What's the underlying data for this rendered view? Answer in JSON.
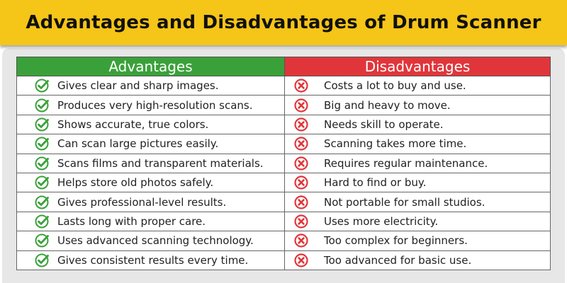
{
  "title": "Advantages and Disadvantages of Drum Scanner",
  "headers": {
    "advantages": "Advantages",
    "disadvantages": "Disadvantages"
  },
  "colors": {
    "title_bg": "#f5c518",
    "adv_header": "#3aa13a",
    "dis_header": "#e0363b",
    "check": "#3aa13a",
    "cross": "#e0363b"
  },
  "icons": {
    "advantage": "check-circle-icon",
    "disadvantage": "x-circle-icon"
  },
  "rows": [
    {
      "advantage": "Gives clear and sharp images.",
      "disadvantage": "Costs a lot to buy and use."
    },
    {
      "advantage": "Produces very high-resolution scans.",
      "disadvantage": "Big and heavy to move."
    },
    {
      "advantage": "Shows accurate, true colors.",
      "disadvantage": "Needs skill to operate."
    },
    {
      "advantage": "Can scan large pictures easily.",
      "disadvantage": "Scanning takes more time."
    },
    {
      "advantage": "Scans films and transparent materials.",
      "disadvantage": "Requires regular maintenance."
    },
    {
      "advantage": "Helps store old photos safely.",
      "disadvantage": "Hard to find or buy."
    },
    {
      "advantage": "Gives professional-level results.",
      "disadvantage": "Not portable for small studios."
    },
    {
      "advantage": "Lasts long with proper care.",
      "disadvantage": "Uses more electricity."
    },
    {
      "advantage": "Uses advanced scanning technology.",
      "disadvantage": "Too complex for beginners."
    },
    {
      "advantage": "Gives consistent results every time.",
      "disadvantage": "Too advanced for basic use."
    }
  ]
}
